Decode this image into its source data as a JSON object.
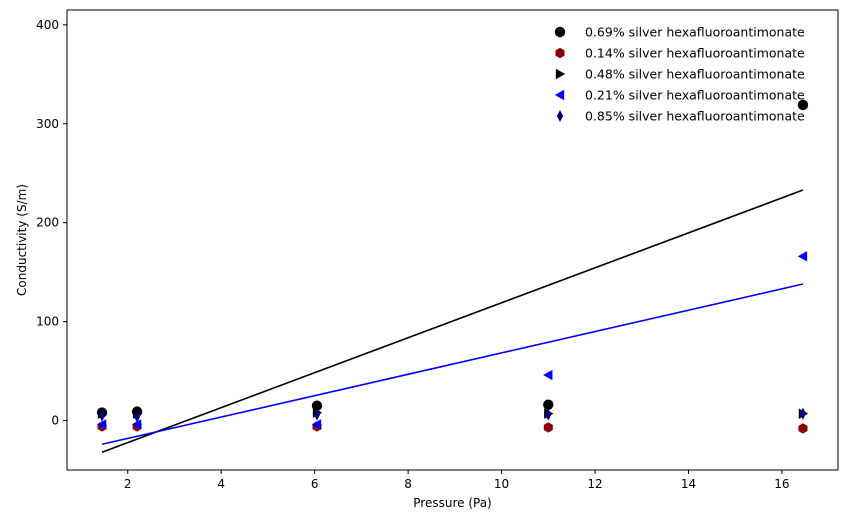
{
  "chart_data": {
    "type": "scatter",
    "title": "",
    "xlabel": "Pressure (Pa)",
    "ylabel": "Conductivity (S/m)",
    "xlim": [
      0.7,
      17.2
    ],
    "ylim": [
      -50,
      415
    ],
    "x_ticks": [
      2,
      4,
      6,
      8,
      10,
      12,
      14,
      16
    ],
    "y_ticks": [
      0,
      100,
      200,
      300,
      400
    ],
    "grid": false,
    "legend_position": "top-right",
    "series": [
      {
        "name": "0.69% silver hexafluoroantimonate",
        "color": "#000000",
        "marker": "circle",
        "points": [
          [
            1.45,
            8
          ],
          [
            2.2,
            9
          ],
          [
            6.05,
            15
          ],
          [
            11.0,
            16
          ],
          [
            16.45,
            319
          ]
        ]
      },
      {
        "name": "0.14% silver hexafluoroantimonate",
        "color": "#8b0000",
        "marker": "hexagon",
        "points": [
          [
            1.45,
            -6
          ],
          [
            2.2,
            -6
          ],
          [
            6.05,
            -6
          ],
          [
            11.0,
            -7
          ],
          [
            16.45,
            -8
          ]
        ]
      },
      {
        "name": "0.48% silver hexafluoroantimonate",
        "color": "#000000",
        "marker": "triangle-right",
        "points": [
          [
            1.45,
            7
          ],
          [
            2.2,
            7
          ],
          [
            6.05,
            8
          ],
          [
            11.0,
            7
          ],
          [
            16.45,
            7
          ]
        ]
      },
      {
        "name": "0.21% silver hexafluoroantimonate",
        "color": "#0000ff",
        "marker": "triangle-left",
        "points": [
          [
            1.45,
            -4
          ],
          [
            2.2,
            -4
          ],
          [
            6.05,
            -4
          ],
          [
            11.0,
            46
          ],
          [
            16.45,
            166
          ]
        ]
      },
      {
        "name": "0.85% silver hexafluoroantimonate",
        "color": "#00008b",
        "marker": "thin-diamond",
        "points": [
          [
            1.45,
            5
          ],
          [
            2.2,
            4
          ],
          [
            6.05,
            6
          ],
          [
            11.0,
            6
          ],
          [
            16.45,
            7
          ]
        ]
      }
    ],
    "trend_lines": [
      {
        "color": "#000000",
        "points": [
          [
            1.45,
            -32
          ],
          [
            16.45,
            233
          ]
        ]
      },
      {
        "color": "#0000ff",
        "points": [
          [
            1.45,
            -24
          ],
          [
            16.45,
            138
          ]
        ]
      }
    ]
  }
}
